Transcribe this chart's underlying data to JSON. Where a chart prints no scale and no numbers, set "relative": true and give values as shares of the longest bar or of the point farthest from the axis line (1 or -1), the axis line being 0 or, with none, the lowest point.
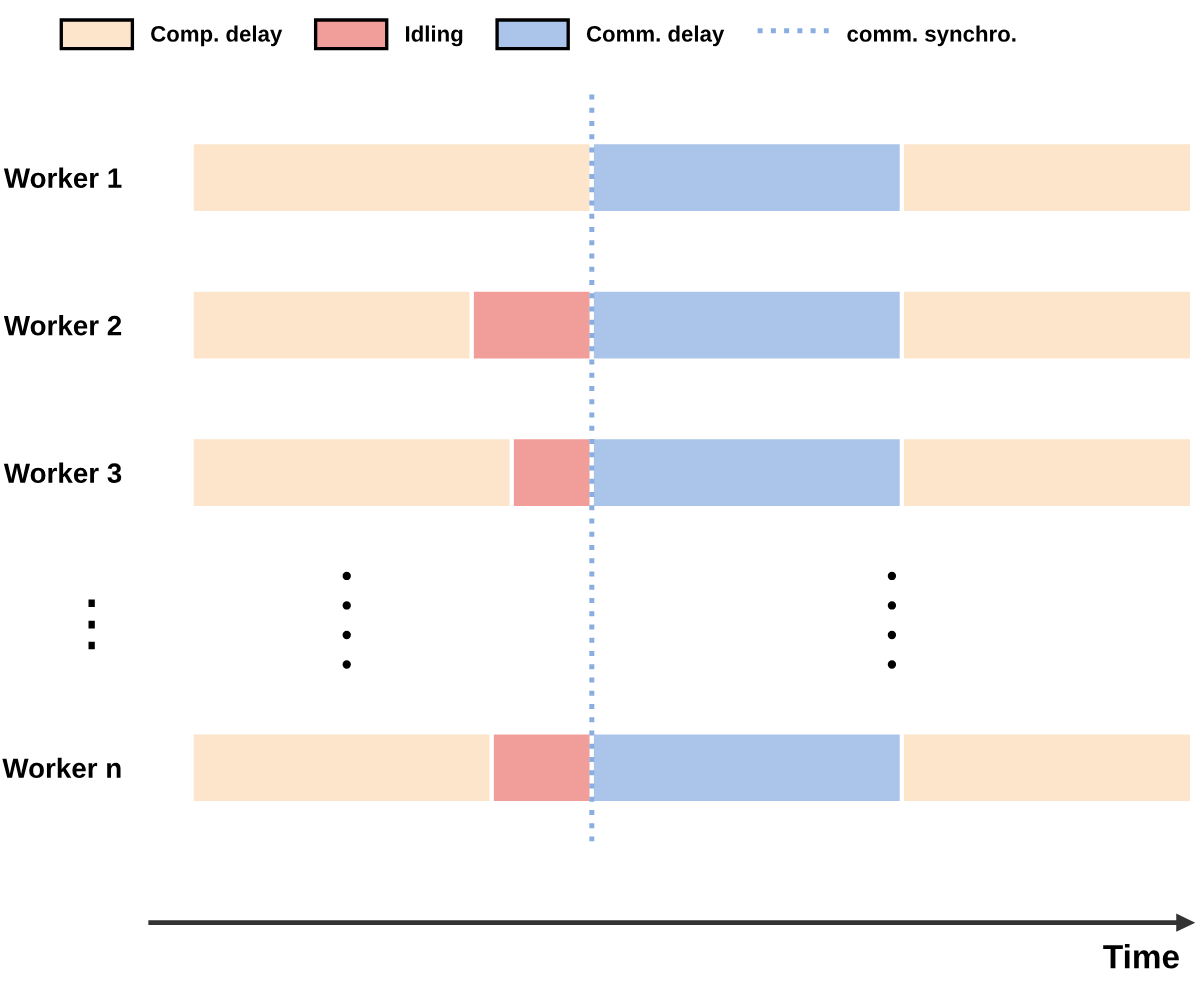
{
  "chart_data": {
    "type": "bar",
    "orientation": "horizontal",
    "stacked": true,
    "relative": true,
    "categories": [
      "Worker 1",
      "Worker 2",
      "Worker 3",
      "⋮",
      "Worker n"
    ],
    "series": [
      {
        "name": "Comp. delay",
        "color": "#fde5cc",
        "values": [
          0.4,
          0.28,
          0.32,
          null,
          0.3
        ]
      },
      {
        "name": "Idling",
        "color": "#f19e9a",
        "values": [
          null,
          0.12,
          0.08,
          null,
          0.1
        ]
      },
      {
        "name": "Comm. delay",
        "color": "#aac4ea",
        "values": [
          0.31,
          0.31,
          0.31,
          null,
          0.31
        ]
      },
      {
        "color": "#fde5cc",
        "values": [
          0.29,
          0.29,
          0.29,
          null,
          0.29
        ]
      }
    ],
    "ref_lines": [
      {
        "axis": "x",
        "value": 0.4,
        "label": "comm. synchro.",
        "color": "#8aaee0",
        "line_style": "dotted"
      }
    ],
    "xlabel": "Time",
    "legend": "top",
    "grid": false
  }
}
